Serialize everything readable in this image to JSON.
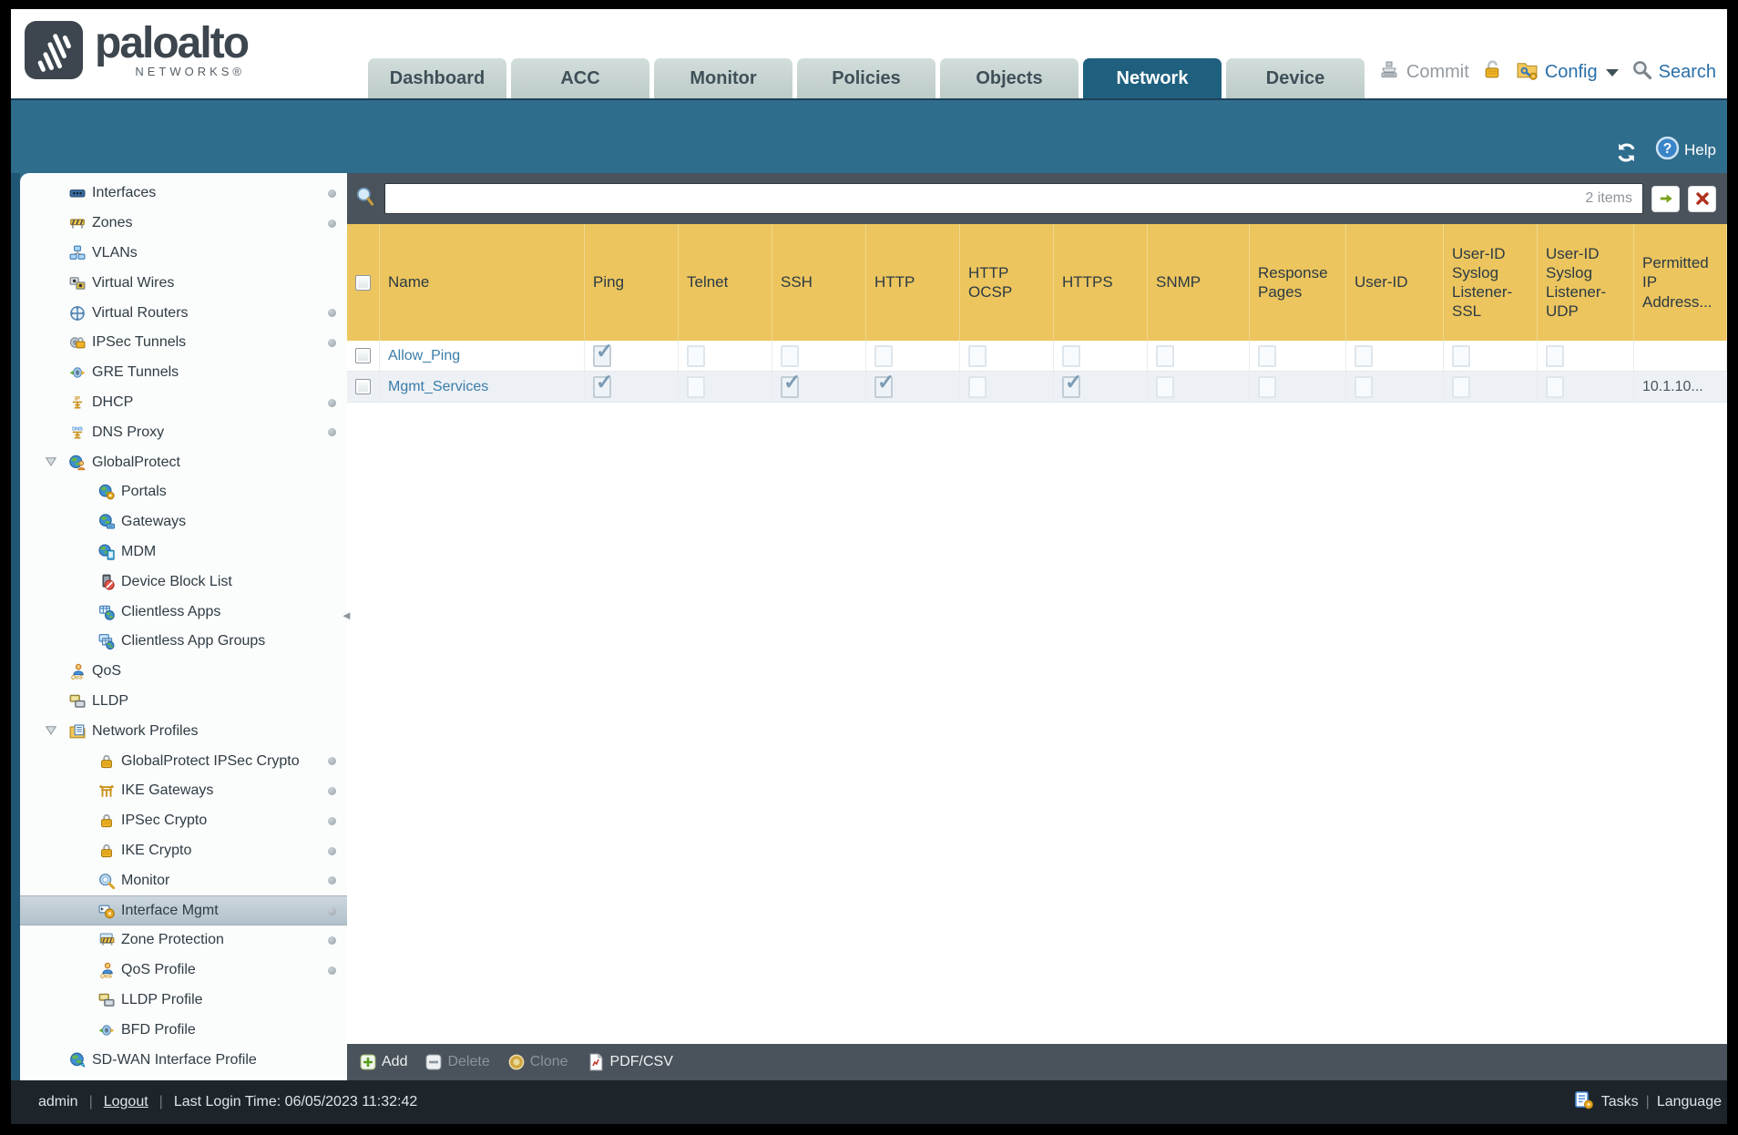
{
  "header": {
    "logo": {
      "brand": "paloalto",
      "sub": "NETWORKS®"
    },
    "tabs": [
      {
        "label": "Dashboard",
        "active": false
      },
      {
        "label": "ACC",
        "active": false
      },
      {
        "label": "Monitor",
        "active": false
      },
      {
        "label": "Policies",
        "active": false
      },
      {
        "label": "Objects",
        "active": false
      },
      {
        "label": "Network",
        "active": true
      },
      {
        "label": "Device",
        "active": false
      }
    ],
    "utilities": {
      "commit": "Commit",
      "config": "Config",
      "search": "Search"
    }
  },
  "band": {
    "help": "Help"
  },
  "sidebar": {
    "items": [
      {
        "label": "Interfaces",
        "icon": "interfaces-icon",
        "indent": 0,
        "dot": true
      },
      {
        "label": "Zones",
        "icon": "zones-icon",
        "indent": 0,
        "dot": true
      },
      {
        "label": "VLANs",
        "icon": "vlans-icon",
        "indent": 0,
        "dot": false
      },
      {
        "label": "Virtual Wires",
        "icon": "virtual-wires-icon",
        "indent": 0,
        "dot": false
      },
      {
        "label": "Virtual Routers",
        "icon": "virtual-routers-icon",
        "indent": 0,
        "dot": true
      },
      {
        "label": "IPSec Tunnels",
        "icon": "ipsec-tunnels-icon",
        "indent": 0,
        "dot": true
      },
      {
        "label": "GRE Tunnels",
        "icon": "gre-tunnels-icon",
        "indent": 0,
        "dot": false
      },
      {
        "label": "DHCP",
        "icon": "dhcp-icon",
        "indent": 0,
        "dot": true
      },
      {
        "label": "DNS Proxy",
        "icon": "dns-proxy-icon",
        "indent": 0,
        "dot": true
      },
      {
        "label": "GlobalProtect",
        "icon": "globalprotect-icon",
        "indent": 0,
        "expanded": true,
        "dot": false
      },
      {
        "label": "Portals",
        "icon": "portals-icon",
        "indent": 1,
        "dot": false
      },
      {
        "label": "Gateways",
        "icon": "gateways-icon",
        "indent": 1,
        "dot": false
      },
      {
        "label": "MDM",
        "icon": "mdm-icon",
        "indent": 1,
        "dot": false
      },
      {
        "label": "Device Block List",
        "icon": "device-block-list-icon",
        "indent": 1,
        "dot": false
      },
      {
        "label": "Clientless Apps",
        "icon": "clientless-apps-icon",
        "indent": 1,
        "dot": false
      },
      {
        "label": "Clientless App Groups",
        "icon": "clientless-app-groups-icon",
        "indent": 1,
        "dot": false
      },
      {
        "label": "QoS",
        "icon": "qos-icon",
        "indent": 0,
        "dot": false
      },
      {
        "label": "LLDP",
        "icon": "lldp-icon",
        "indent": 0,
        "dot": false
      },
      {
        "label": "Network Profiles",
        "icon": "network-profiles-icon",
        "indent": 0,
        "expanded": true,
        "dot": false
      },
      {
        "label": "GlobalProtect IPSec Crypto",
        "icon": "lock-icon",
        "indent": 1,
        "dot": true
      },
      {
        "label": "IKE Gateways",
        "icon": "ike-gateways-icon",
        "indent": 1,
        "dot": true
      },
      {
        "label": "IPSec Crypto",
        "icon": "lock-icon",
        "indent": 1,
        "dot": true
      },
      {
        "label": "IKE Crypto",
        "icon": "lock-icon",
        "indent": 1,
        "dot": true
      },
      {
        "label": "Monitor",
        "icon": "monitor-search-icon",
        "indent": 1,
        "dot": true
      },
      {
        "label": "Interface Mgmt",
        "icon": "interface-mgmt-icon",
        "indent": 1,
        "selected": true,
        "dot": true
      },
      {
        "label": "Zone Protection",
        "icon": "zone-protection-icon",
        "indent": 1,
        "dot": true
      },
      {
        "label": "QoS Profile",
        "icon": "qos-icon",
        "indent": 1,
        "dot": true
      },
      {
        "label": "LLDP Profile",
        "icon": "lldp-icon",
        "indent": 1,
        "dot": false
      },
      {
        "label": "BFD Profile",
        "icon": "bfd-icon",
        "indent": 1,
        "dot": false
      },
      {
        "label": "SD-WAN Interface Profile",
        "icon": "sdwan-icon",
        "indent": 0,
        "dot": false
      }
    ]
  },
  "content": {
    "filter": {
      "value": "",
      "count": "2 items"
    },
    "table": {
      "columns": [
        "Name",
        "Ping",
        "Telnet",
        "SSH",
        "HTTP",
        "HTTP OCSP",
        "HTTPS",
        "SNMP",
        "Response Pages",
        "User-ID",
        "User-ID Syslog Listener-SSL",
        "User-ID Syslog Listener-UDP",
        "Permitted IP Address..."
      ],
      "service_keys": [
        "ping",
        "telnet",
        "ssh",
        "http",
        "http_ocsp",
        "https",
        "snmp",
        "response_pages",
        "user_id",
        "user_id_syslog_listener_ssl",
        "user_id_syslog_listener_udp"
      ],
      "rows": [
        {
          "name": "Allow_Ping",
          "services": {
            "ping": true,
            "telnet": false,
            "ssh": false,
            "http": false,
            "http_ocsp": false,
            "https": false,
            "snmp": false,
            "response_pages": false,
            "user_id": false,
            "user_id_syslog_listener_ssl": false,
            "user_id_syslog_listener_udp": false
          },
          "permitted_ip": ""
        },
        {
          "name": "Mgmt_Services",
          "services": {
            "ping": true,
            "telnet": false,
            "ssh": true,
            "http": true,
            "http_ocsp": false,
            "https": true,
            "snmp": false,
            "response_pages": false,
            "user_id": false,
            "user_id_syslog_listener_ssl": false,
            "user_id_syslog_listener_udp": false
          },
          "permitted_ip": "10.1.10..."
        }
      ]
    },
    "actions": [
      {
        "label": "Add",
        "icon": "add-icon",
        "enabled": true
      },
      {
        "label": "Delete",
        "icon": "delete-icon",
        "enabled": false
      },
      {
        "label": "Clone",
        "icon": "clone-icon",
        "enabled": false
      },
      {
        "label": "PDF/CSV",
        "icon": "pdf-csv-icon",
        "enabled": true
      }
    ]
  },
  "footer": {
    "user": "admin",
    "logout": "Logout",
    "last_login": "Last Login Time: 06/05/2023 11:32:42",
    "tasks": "Tasks",
    "language": "Language"
  },
  "colors": {
    "accent_teal": "#2f6d8d",
    "header_gold": "#ecc55e",
    "link_blue": "#3a7ca8",
    "tab_active": "#1f607f"
  }
}
